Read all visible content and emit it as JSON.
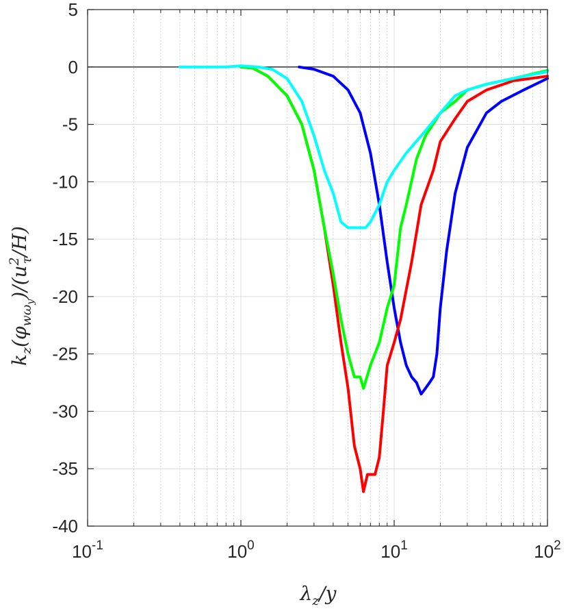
{
  "chart_data": {
    "type": "line",
    "xscale": "log",
    "xlim": [
      0.1,
      100
    ],
    "ylim": [
      -40,
      5
    ],
    "xticks": [
      {
        "value": 0.1,
        "base": "10",
        "exp": "-1"
      },
      {
        "value": 1,
        "base": "10",
        "exp": "0"
      },
      {
        "value": 10,
        "base": "10",
        "exp": "1"
      },
      {
        "value": 100,
        "base": "10",
        "exp": "2"
      }
    ],
    "yticks": [
      {
        "value": 5,
        "label": "5"
      },
      {
        "value": 0,
        "label": "0"
      },
      {
        "value": -5,
        "label": "-5"
      },
      {
        "value": -10,
        "label": "-10"
      },
      {
        "value": -15,
        "label": "-15"
      },
      {
        "value": -20,
        "label": "-20"
      },
      {
        "value": -25,
        "label": "-25"
      },
      {
        "value": -30,
        "label": "-30"
      },
      {
        "value": -35,
        "label": "-35"
      },
      {
        "value": -40,
        "label": "-40"
      }
    ],
    "xlabel": "λz/y",
    "ylabel": "kz(φwωy)/(u²τ/H)",
    "grid": true,
    "zero_line": true,
    "series": [
      {
        "color": "#0000ff",
        "points": [
          [
            2.4,
            0
          ],
          [
            3,
            -0.2
          ],
          [
            4,
            -0.8
          ],
          [
            5,
            -2
          ],
          [
            6,
            -4
          ],
          [
            7,
            -7.5
          ],
          [
            8,
            -12
          ],
          [
            9,
            -17
          ],
          [
            10,
            -21
          ],
          [
            11,
            -24
          ],
          [
            12,
            -26
          ],
          [
            13,
            -27
          ],
          [
            14,
            -27.5
          ],
          [
            15,
            -28.5
          ],
          [
            16,
            -28
          ],
          [
            17,
            -27.5
          ],
          [
            18,
            -27
          ],
          [
            19,
            -25
          ],
          [
            20,
            -21
          ],
          [
            22,
            -16
          ],
          [
            25,
            -11
          ],
          [
            30,
            -7
          ],
          [
            40,
            -4
          ],
          [
            50,
            -3
          ],
          [
            70,
            -2
          ],
          [
            100,
            -1
          ]
        ]
      },
      {
        "color": "#ff0000",
        "points": [
          [
            1,
            0
          ],
          [
            1.2,
            -0.1
          ],
          [
            1.5,
            -0.8
          ],
          [
            2,
            -2.5
          ],
          [
            2.5,
            -5
          ],
          [
            3,
            -9
          ],
          [
            3.5,
            -14
          ],
          [
            4,
            -19
          ],
          [
            4.5,
            -24
          ],
          [
            5,
            -28
          ],
          [
            5.5,
            -33
          ],
          [
            6,
            -35
          ],
          [
            6.3,
            -37
          ],
          [
            6.7,
            -35.5
          ],
          [
            7.5,
            -35.5
          ],
          [
            8,
            -34
          ],
          [
            8.5,
            -30
          ],
          [
            9,
            -26
          ],
          [
            10,
            -24
          ],
          [
            11,
            -22
          ],
          [
            13,
            -17
          ],
          [
            15,
            -12
          ],
          [
            18,
            -9
          ],
          [
            20,
            -6.5
          ],
          [
            25,
            -4.5
          ],
          [
            30,
            -3
          ],
          [
            40,
            -2
          ],
          [
            60,
            -1.2
          ],
          [
            100,
            -0.8
          ]
        ]
      },
      {
        "color": "#00ff00",
        "points": [
          [
            1,
            0
          ],
          [
            1.2,
            -0.1
          ],
          [
            1.5,
            -0.8
          ],
          [
            2,
            -2.5
          ],
          [
            2.5,
            -5
          ],
          [
            3,
            -9
          ],
          [
            3.5,
            -14
          ],
          [
            4,
            -18
          ],
          [
            4.5,
            -22
          ],
          [
            5,
            -25
          ],
          [
            5.5,
            -27
          ],
          [
            6,
            -27
          ],
          [
            6.3,
            -28
          ],
          [
            7,
            -26
          ],
          [
            8,
            -24
          ],
          [
            9,
            -21
          ],
          [
            10,
            -19
          ],
          [
            11,
            -14
          ],
          [
            12,
            -12
          ],
          [
            14,
            -8
          ],
          [
            16,
            -6
          ],
          [
            20,
            -4
          ],
          [
            25,
            -3
          ],
          [
            30,
            -2
          ],
          [
            40,
            -1.5
          ],
          [
            60,
            -1
          ],
          [
            100,
            -0.3
          ]
        ]
      },
      {
        "color": "#00ffff",
        "points": [
          [
            0.4,
            0
          ],
          [
            0.6,
            0
          ],
          [
            0.8,
            0
          ],
          [
            1,
            0.1
          ],
          [
            1.3,
            0
          ],
          [
            1.6,
            -0.2
          ],
          [
            2,
            -1
          ],
          [
            2.5,
            -3
          ],
          [
            3,
            -6
          ],
          [
            3.5,
            -9
          ],
          [
            4,
            -11
          ],
          [
            4.5,
            -13.5
          ],
          [
            5,
            -14
          ],
          [
            5.5,
            -14
          ],
          [
            6,
            -14
          ],
          [
            6.5,
            -14
          ],
          [
            7,
            -13.5
          ],
          [
            8,
            -12
          ],
          [
            9,
            -10
          ],
          [
            10,
            -9
          ],
          [
            12,
            -7.5
          ],
          [
            15,
            -6
          ],
          [
            20,
            -4
          ],
          [
            25,
            -2.5
          ],
          [
            30,
            -2
          ],
          [
            40,
            -1.5
          ],
          [
            60,
            -1
          ],
          [
            100,
            -0.4
          ]
        ]
      }
    ]
  }
}
